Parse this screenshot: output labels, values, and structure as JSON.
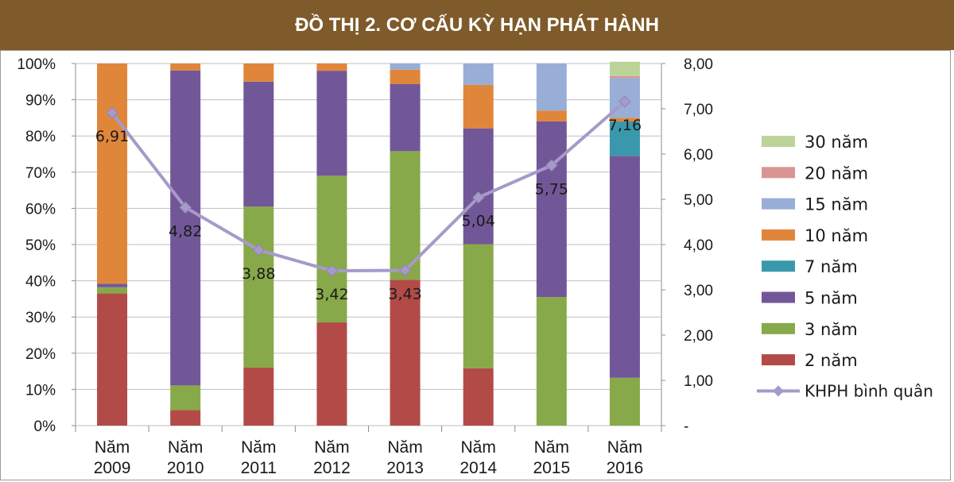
{
  "title": "ĐỒ THỊ 2. CƠ CẤU KỲ HẠN PHÁT HÀNH",
  "chart_data": {
    "type": "bar",
    "stacked": true,
    "categories": [
      "Năm 2009",
      "Năm 2010",
      "Năm 2011",
      "Năm 2012",
      "Năm 2013",
      "Năm 2014",
      "Năm 2015",
      "Năm 2016"
    ],
    "category_lines": [
      [
        "Năm",
        "2009"
      ],
      [
        "Năm",
        "2010"
      ],
      [
        "Năm",
        "2011"
      ],
      [
        "Năm",
        "2012"
      ],
      [
        "Năm",
        "2013"
      ],
      [
        "Năm",
        "2014"
      ],
      [
        "Năm",
        "2015"
      ],
      [
        "Năm",
        "2016"
      ]
    ],
    "ylim": [
      0,
      100
    ],
    "y_ticks": [
      "0%",
      "10%",
      "20%",
      "30%",
      "40%",
      "50%",
      "60%",
      "70%",
      "80%",
      "90%",
      "100%"
    ],
    "y2lim": [
      0,
      8
    ],
    "y2_ticks": [
      "-",
      "1,00",
      "2,00",
      "3,00",
      "4,00",
      "5,00",
      "6,00",
      "7,00",
      "8,00"
    ],
    "grid": true,
    "legend_position": "right",
    "series": [
      {
        "name": "2 năm",
        "color": "#b24b48",
        "values": [
          36.5,
          4.3,
          16,
          28.5,
          40.3,
          15.8,
          0,
          0
        ]
      },
      {
        "name": "3 năm",
        "color": "#88a94a",
        "values": [
          1.7,
          6.8,
          44.5,
          40.5,
          35.5,
          34.3,
          35.5,
          13.2
        ]
      },
      {
        "name": "5 năm",
        "color": "#725798",
        "values": [
          1,
          87,
          34.5,
          29,
          18.5,
          32,
          48.5,
          61.3
        ]
      },
      {
        "name": "7 năm",
        "color": "#3a98ad",
        "values": [
          0,
          0,
          0,
          0,
          0,
          0,
          0,
          9.5
        ]
      },
      {
        "name": "10 năm",
        "color": "#e0863b",
        "values": [
          60.8,
          1.9,
          5,
          2,
          4,
          12,
          3,
          1
        ]
      },
      {
        "name": "15 năm",
        "color": "#98aed6",
        "values": [
          0,
          0,
          0,
          0,
          1.7,
          5.9,
          13,
          11
        ]
      },
      {
        "name": "20 năm",
        "color": "#d99593",
        "values": [
          0,
          0,
          0,
          0,
          0,
          0,
          0,
          0.5
        ]
      },
      {
        "name": "30 năm",
        "color": "#bcd49a",
        "values": [
          0,
          0,
          0,
          0,
          0,
          0,
          0,
          4
        ]
      }
    ],
    "line_series": {
      "name": "KHPH bình quân",
      "color": "#a69ac9",
      "axis": "right",
      "values": [
        6.91,
        4.82,
        3.88,
        3.42,
        3.43,
        5.04,
        5.75,
        7.16
      ],
      "labels": [
        "6,91",
        "4,82",
        "3,88",
        "3,42",
        "3,43",
        "5,04",
        "5,75",
        "7,16"
      ]
    },
    "legend_order": [
      "30 năm",
      "20 năm",
      "15 năm",
      "10 năm",
      "7 năm",
      "5 năm",
      "3 năm",
      "2 năm",
      "KHPH bình quân"
    ]
  }
}
